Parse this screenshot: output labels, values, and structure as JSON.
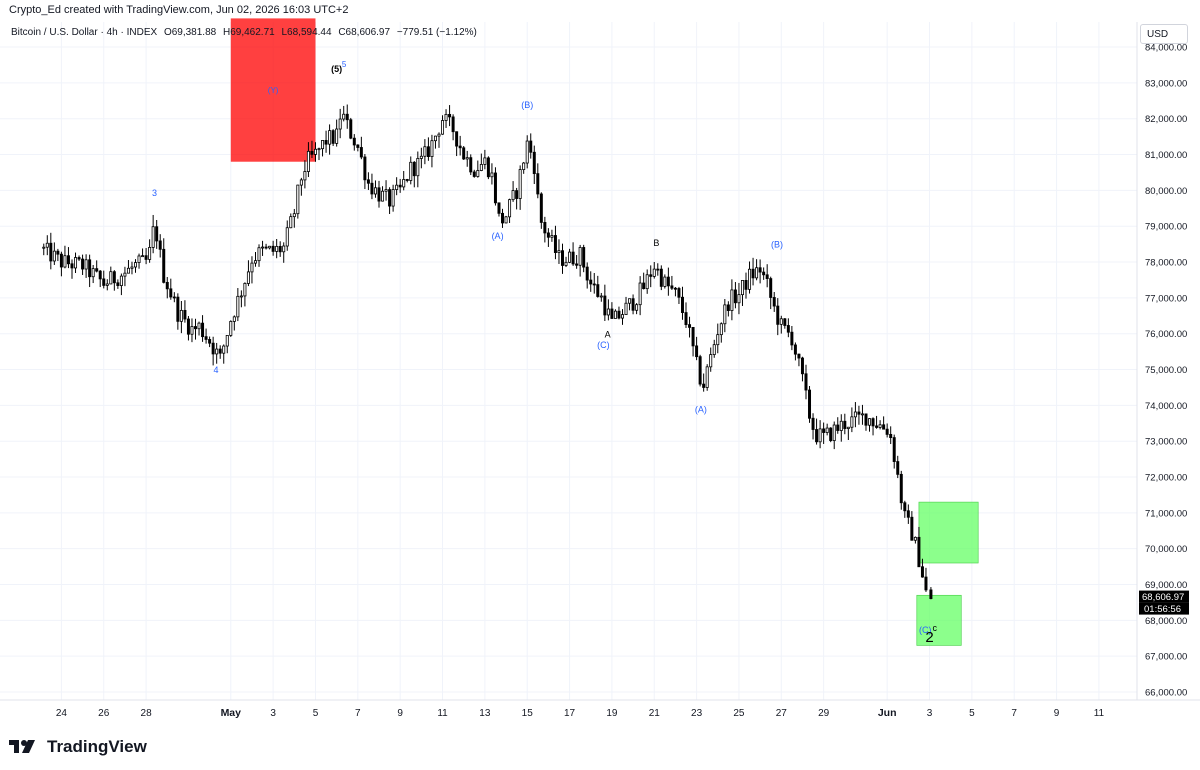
{
  "header": {
    "credit": "Crypto_Ed created with TradingView.com, Jun 02, 2026 16:03 UTC+2"
  },
  "legend": {
    "symbol": "Bitcoin / U.S. Dollar · 4h · INDEX",
    "open": "O69,381.88",
    "high": "H69,462.71",
    "low": "L68,594.44",
    "close": "C68,606.97",
    "change": "−779.51 (−1.12%)"
  },
  "currency_button": "USD",
  "footer": {
    "brand": "TradingView"
  },
  "colors": {
    "up": "#ffffff",
    "down": "#000000",
    "wick": "#000000",
    "red_zone": "#ff0000",
    "green_zone": "#66ff66",
    "label_blue": "#2962ff",
    "label_black": "#000000",
    "price_tag": "#000000"
  },
  "chart_data": {
    "type": "candlestick",
    "title": "Bitcoin / U.S. Dollar · 4h · INDEX",
    "xlabel": "",
    "ylabel": "",
    "ylim": [
      65500,
      84500
    ],
    "y_ticks": [
      "66,000.00",
      "67,000.00",
      "68,000.00",
      "69,000.00",
      "70,000.00",
      "71,000.00",
      "72,000.00",
      "73,000.00",
      "74,000.00",
      "75,000.00",
      "76,000.00",
      "77,000.00",
      "78,000.00",
      "79,000.00",
      "80,000.00",
      "81,000.00",
      "82,000.00",
      "83,000.00",
      "84,000.00"
    ],
    "y_tick_values": [
      66000,
      67000,
      68000,
      69000,
      70000,
      71000,
      72000,
      73000,
      74000,
      75000,
      76000,
      77000,
      78000,
      79000,
      80000,
      81000,
      82000,
      83000,
      84000
    ],
    "x_ticks": [
      "24",
      "26",
      "28",
      "May",
      "3",
      "5",
      "7",
      "9",
      "11",
      "13",
      "15",
      "17",
      "19",
      "21",
      "23",
      "25",
      "27",
      "29",
      "Jun",
      "3",
      "5",
      "7",
      "9",
      "11"
    ],
    "x_tick_days": [
      -7,
      -5,
      -3,
      1,
      3,
      5,
      7,
      9,
      11,
      13,
      15,
      17,
      19,
      21,
      23,
      25,
      27,
      29,
      32,
      34,
      36,
      38,
      40,
      42
    ],
    "last_price": "68,606.97",
    "countdown": "01:56:56",
    "last_value": 68606.97,
    "path_anchors": [
      [
        -8,
        78400
      ],
      [
        -7,
        78000
      ],
      [
        -6,
        77900
      ],
      [
        -5,
        77400
      ],
      [
        -4,
        77700
      ],
      [
        -3.5,
        77900
      ],
      [
        -3,
        78000
      ],
      [
        -2.8,
        78300
      ],
      [
        -2.6,
        79100
      ],
      [
        -2.2,
        77700
      ],
      [
        -1.5,
        76600
      ],
      [
        -0.8,
        76100
      ],
      [
        -0.5,
        76200
      ],
      [
        0,
        75800
      ],
      [
        0.5,
        75300
      ],
      [
        1,
        76400
      ],
      [
        1.5,
        77200
      ],
      [
        2,
        78100
      ],
      [
        2.5,
        78300
      ],
      [
        3,
        78300
      ],
      [
        3.5,
        78400
      ],
      [
        4,
        79400
      ],
      [
        4.3,
        80300
      ],
      [
        4.6,
        80800
      ],
      [
        5,
        81000
      ],
      [
        5.5,
        81400
      ],
      [
        6,
        81500
      ],
      [
        6.2,
        82200
      ],
      [
        6.5,
        81800
      ],
      [
        7,
        81200
      ],
      [
        7.5,
        80200
      ],
      [
        8,
        79900
      ],
      [
        8.5,
        79700
      ],
      [
        9,
        80000
      ],
      [
        9.5,
        80600
      ],
      [
        10,
        80800
      ],
      [
        10.5,
        81300
      ],
      [
        11,
        82000
      ],
      [
        11.5,
        81700
      ],
      [
        12,
        81000
      ],
      [
        12.5,
        80600
      ],
      [
        13,
        80800
      ],
      [
        13.3,
        80500
      ],
      [
        13.7,
        79100
      ],
      [
        14,
        79300
      ],
      [
        14.5,
        80000
      ],
      [
        15,
        81300
      ],
      [
        15.3,
        80900
      ],
      [
        15.6,
        79200
      ],
      [
        16,
        78700
      ],
      [
        16.5,
        78100
      ],
      [
        17,
        78100
      ],
      [
        17.5,
        78200
      ],
      [
        17.8,
        77700
      ],
      [
        18,
        77400
      ],
      [
        18.5,
        77000
      ],
      [
        19,
        76300
      ],
      [
        19.5,
        76600
      ],
      [
        20,
        76900
      ],
      [
        20.5,
        77300
      ],
      [
        21,
        77900
      ],
      [
        21.5,
        77400
      ],
      [
        22,
        77100
      ],
      [
        22.5,
        76400
      ],
      [
        23,
        75100
      ],
      [
        23.3,
        74500
      ],
      [
        23.6,
        75200
      ],
      [
        24,
        76100
      ],
      [
        24.5,
        76900
      ],
      [
        25,
        77100
      ],
      [
        25.5,
        77600
      ],
      [
        26,
        77800
      ],
      [
        26.3,
        77400
      ],
      [
        26.6,
        76800
      ],
      [
        27,
        76200
      ],
      [
        27.5,
        75900
      ],
      [
        28,
        74700
      ],
      [
        28.3,
        73800
      ],
      [
        28.6,
        73200
      ],
      [
        29,
        73100
      ],
      [
        29.5,
        73300
      ],
      [
        30,
        73500
      ],
      [
        30.5,
        73600
      ],
      [
        31,
        73700
      ],
      [
        31.5,
        73500
      ],
      [
        32.1,
        73300
      ],
      [
        32.4,
        72400
      ],
      [
        32.8,
        70900
      ],
      [
        33.2,
        70400
      ],
      [
        33.6,
        69500
      ],
      [
        33.9,
        68607
      ]
    ]
  },
  "annotations": {
    "red_zone": {
      "label": "(Y)",
      "x0": 1,
      "x1": 5,
      "y0": 80800,
      "y1": 84800
    },
    "green_zones": [
      {
        "x0": 33.5,
        "x1": 36.3,
        "y0": 69600,
        "y1": 71300
      },
      {
        "x0": 33.4,
        "x1": 35.5,
        "y0": 67300,
        "y1": 68700
      }
    ],
    "labels": [
      {
        "text": "3",
        "day": -2.6,
        "price": 79850,
        "color": "blue",
        "size": 9
      },
      {
        "text": "4",
        "day": 0.3,
        "price": 74900,
        "color": "blue",
        "size": 9
      },
      {
        "text": "(5)",
        "day": 6.0,
        "price": 83300,
        "color": "black",
        "size": 9
      },
      {
        "text": "5",
        "day": 6.35,
        "price": 83450,
        "color": "blue",
        "size": 8
      },
      {
        "text": "(A)",
        "day": 13.6,
        "price": 78650,
        "color": "blue",
        "size": 9
      },
      {
        "text": "(B)",
        "day": 15.0,
        "price": 82300,
        "color": "blue",
        "size": 9
      },
      {
        "text": "A",
        "day": 18.8,
        "price": 75900,
        "color": "black",
        "size": 9
      },
      {
        "text": "(C)",
        "day": 18.6,
        "price": 75600,
        "color": "blue",
        "size": 9
      },
      {
        "text": "B",
        "day": 21.1,
        "price": 78450,
        "color": "black",
        "size": 9
      },
      {
        "text": "(A)",
        "day": 23.2,
        "price": 73800,
        "color": "blue",
        "size": 9
      },
      {
        "text": "(B)",
        "day": 26.8,
        "price": 78400,
        "color": "blue",
        "size": 9
      },
      {
        "text": "(C)",
        "day": 33.8,
        "price": 67650,
        "color": "blue",
        "size": 9
      },
      {
        "text": "c",
        "day": 34.25,
        "price": 67700,
        "color": "black",
        "size": 9
      },
      {
        "text": "2",
        "day": 34.0,
        "price": 67400,
        "color": "black",
        "size": 15
      }
    ]
  }
}
